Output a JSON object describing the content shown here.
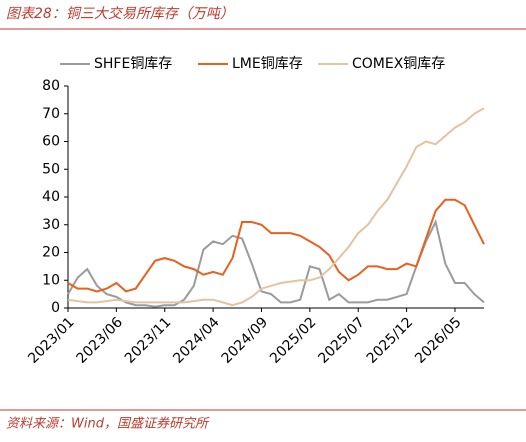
{
  "title": "图表28：铜三大交易所库存（万吨）",
  "source": "资料来源：Wind，国盛证券研究所",
  "chart_data": {
    "type": "line",
    "x": [
      "2023/01",
      null,
      null,
      null,
      null,
      "2023/06",
      null,
      null,
      null,
      null,
      "2023/11",
      null,
      null,
      null,
      null,
      "2024/04",
      null,
      null,
      null,
      null,
      "2024/09",
      null,
      null,
      null,
      null,
      "2025/02",
      null,
      null,
      null,
      null,
      "2025/07",
      null,
      null,
      null,
      null,
      "2025/12",
      null,
      null,
      null,
      null,
      "2026/05",
      null,
      null,
      null
    ],
    "series": [
      {
        "name": "SHFE铜库存",
        "color": "#9b9b9b",
        "values": [
          5,
          11,
          14,
          8,
          5,
          4,
          2,
          1,
          1,
          0.5,
          1,
          1,
          3,
          8,
          21,
          24,
          23,
          26,
          25,
          16,
          6,
          5,
          2,
          2,
          3,
          15,
          14,
          3,
          5,
          2,
          2,
          2,
          3,
          3,
          4,
          5,
          15,
          24,
          31,
          16,
          9,
          9,
          5,
          2
        ]
      },
      {
        "name": "LME铜库存",
        "color": "#e8601c",
        "values": [
          9,
          7,
          7,
          6,
          7,
          9,
          6,
          7,
          12,
          17,
          18,
          17,
          15,
          14,
          12,
          13,
          12,
          18,
          31,
          31,
          30,
          27,
          27,
          27,
          26,
          24,
          22,
          19,
          13,
          10,
          12,
          15,
          15,
          14,
          14,
          16,
          15,
          25,
          35,
          39,
          39,
          37,
          30,
          23
        ]
      },
      {
        "name": "COMEX铜库存",
        "color": "#e3c3a0",
        "values": [
          3,
          2.5,
          2,
          2,
          2.5,
          3,
          2.5,
          2,
          2,
          2,
          2,
          2,
          2,
          2.5,
          3,
          3,
          2,
          1,
          2,
          4,
          7,
          8,
          9,
          9.5,
          10,
          10,
          11,
          14,
          18,
          22,
          27,
          30,
          35,
          39,
          45,
          51,
          58,
          60,
          59,
          62,
          65,
          67,
          70,
          72
        ]
      }
    ],
    "ylim": [
      0,
      80
    ],
    "yticks": [
      0,
      10,
      20,
      30,
      40,
      50,
      60,
      70,
      80
    ],
    "legend": "top"
  }
}
